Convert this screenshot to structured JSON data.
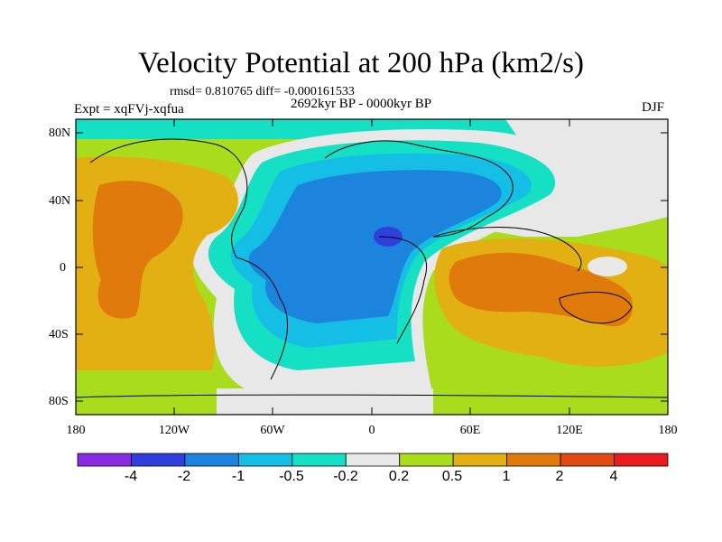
{
  "title": "Velocity Potential at 200 hPa (km2/s)",
  "stats": "rmsd= 0.810765 diff= -0.000161533",
  "period": "2692kyr BP - 0000kyr BP",
  "experiment": "Expt = xqFVj-xqfua",
  "season": "DJF",
  "y_ticks": [
    "80N",
    "40N",
    "0",
    "40S",
    "80S"
  ],
  "x_ticks": [
    "180",
    "120W",
    "60W",
    "0",
    "60E",
    "120E",
    "180"
  ],
  "colorbar": {
    "labels": [
      "-4",
      "-2",
      "-1",
      "-0.5",
      "-0.2",
      "0.2",
      "0.5",
      "1",
      "2",
      "4"
    ],
    "colors": [
      "#8a2be2",
      "#2f3fdc",
      "#1c84dc",
      "#14bee4",
      "#16e0c4",
      "#e8e8e8",
      "#a8dc1c",
      "#e2b012",
      "#e07a0c",
      "#e14a12",
      "#e81c1c"
    ]
  }
}
